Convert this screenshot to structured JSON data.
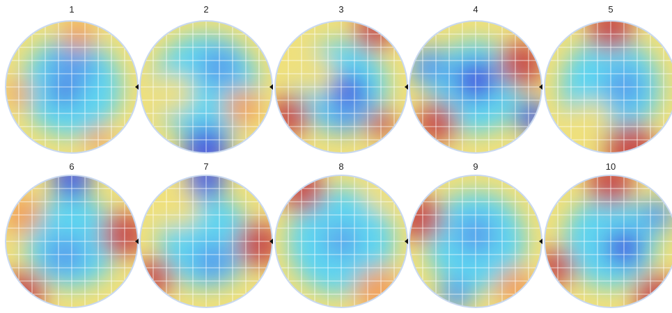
{
  "wafers": [
    {
      "label": "1"
    },
    {
      "label": "2"
    },
    {
      "label": "3"
    },
    {
      "label": "4"
    },
    {
      "label": "5"
    },
    {
      "label": "6"
    },
    {
      "label": "7"
    },
    {
      "label": "8"
    },
    {
      "label": "9"
    },
    {
      "label": "10"
    }
  ]
}
